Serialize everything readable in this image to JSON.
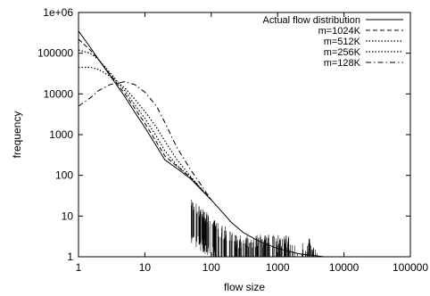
{
  "chart_data": {
    "type": "line",
    "title": "",
    "xlabel": "flow size",
    "ylabel": "frequency",
    "xscale": "log",
    "yscale": "log",
    "xlim": [
      1,
      100000
    ],
    "ylim": [
      1,
      1000000
    ],
    "x_ticks": [
      "1",
      "10",
      "100",
      "1000",
      "10000",
      "100000"
    ],
    "y_ticks": [
      "1",
      "10",
      "100",
      "1000",
      "10000",
      "100000",
      "1e+06"
    ],
    "grid": false,
    "legend_position": "top-right",
    "series": [
      {
        "name": "Actual flow distribution",
        "style": "solid",
        "x": [
          1,
          1.5,
          2,
          3,
          5,
          7,
          10,
          15,
          20,
          30,
          50,
          70,
          100,
          150,
          200,
          300,
          500,
          700,
          1000,
          2000,
          2900,
          3000,
          3100,
          5000,
          10000,
          25000
        ],
        "y": [
          350000,
          140000,
          70000,
          28000,
          8500,
          3600,
          1500,
          520,
          240,
          150,
          80,
          45,
          25,
          12,
          7,
          4,
          2.5,
          2,
          1.6,
          1.2,
          1.1,
          2.8,
          1.1,
          1,
          1,
          1
        ]
      },
      {
        "name": "m=1024K",
        "style": "dashed",
        "x": [
          1,
          1.5,
          2,
          3,
          5,
          7,
          10,
          15,
          20,
          30,
          50,
          100
        ],
        "y": [
          220000,
          120000,
          70000,
          30000,
          10000,
          4500,
          1900,
          650,
          300,
          170,
          85,
          25
        ]
      },
      {
        "name": "m=512K",
        "style": "dotted",
        "x": [
          1,
          1.5,
          2,
          3,
          5,
          7,
          10,
          15,
          20,
          30,
          50,
          100
        ],
        "y": [
          120000,
          100000,
          70000,
          33000,
          12000,
          5500,
          2500,
          900,
          400,
          180,
          85,
          25
        ]
      },
      {
        "name": "m=256K",
        "style": "dotted",
        "x": [
          1,
          1.5,
          2,
          3,
          5,
          7,
          10,
          15,
          20,
          30,
          50,
          100
        ],
        "y": [
          45000,
          45000,
          40000,
          27000,
          14000,
          7500,
          3700,
          1500,
          700,
          250,
          90,
          25
        ]
      },
      {
        "name": "m=128K",
        "style": "dashdot",
        "x": [
          1,
          1.5,
          2,
          3,
          5,
          7,
          10,
          15,
          20,
          30,
          50,
          100
        ],
        "y": [
          5000,
          8000,
          12000,
          17000,
          20000,
          17000,
          11000,
          5000,
          2000,
          500,
          130,
          25
        ]
      }
    ]
  }
}
